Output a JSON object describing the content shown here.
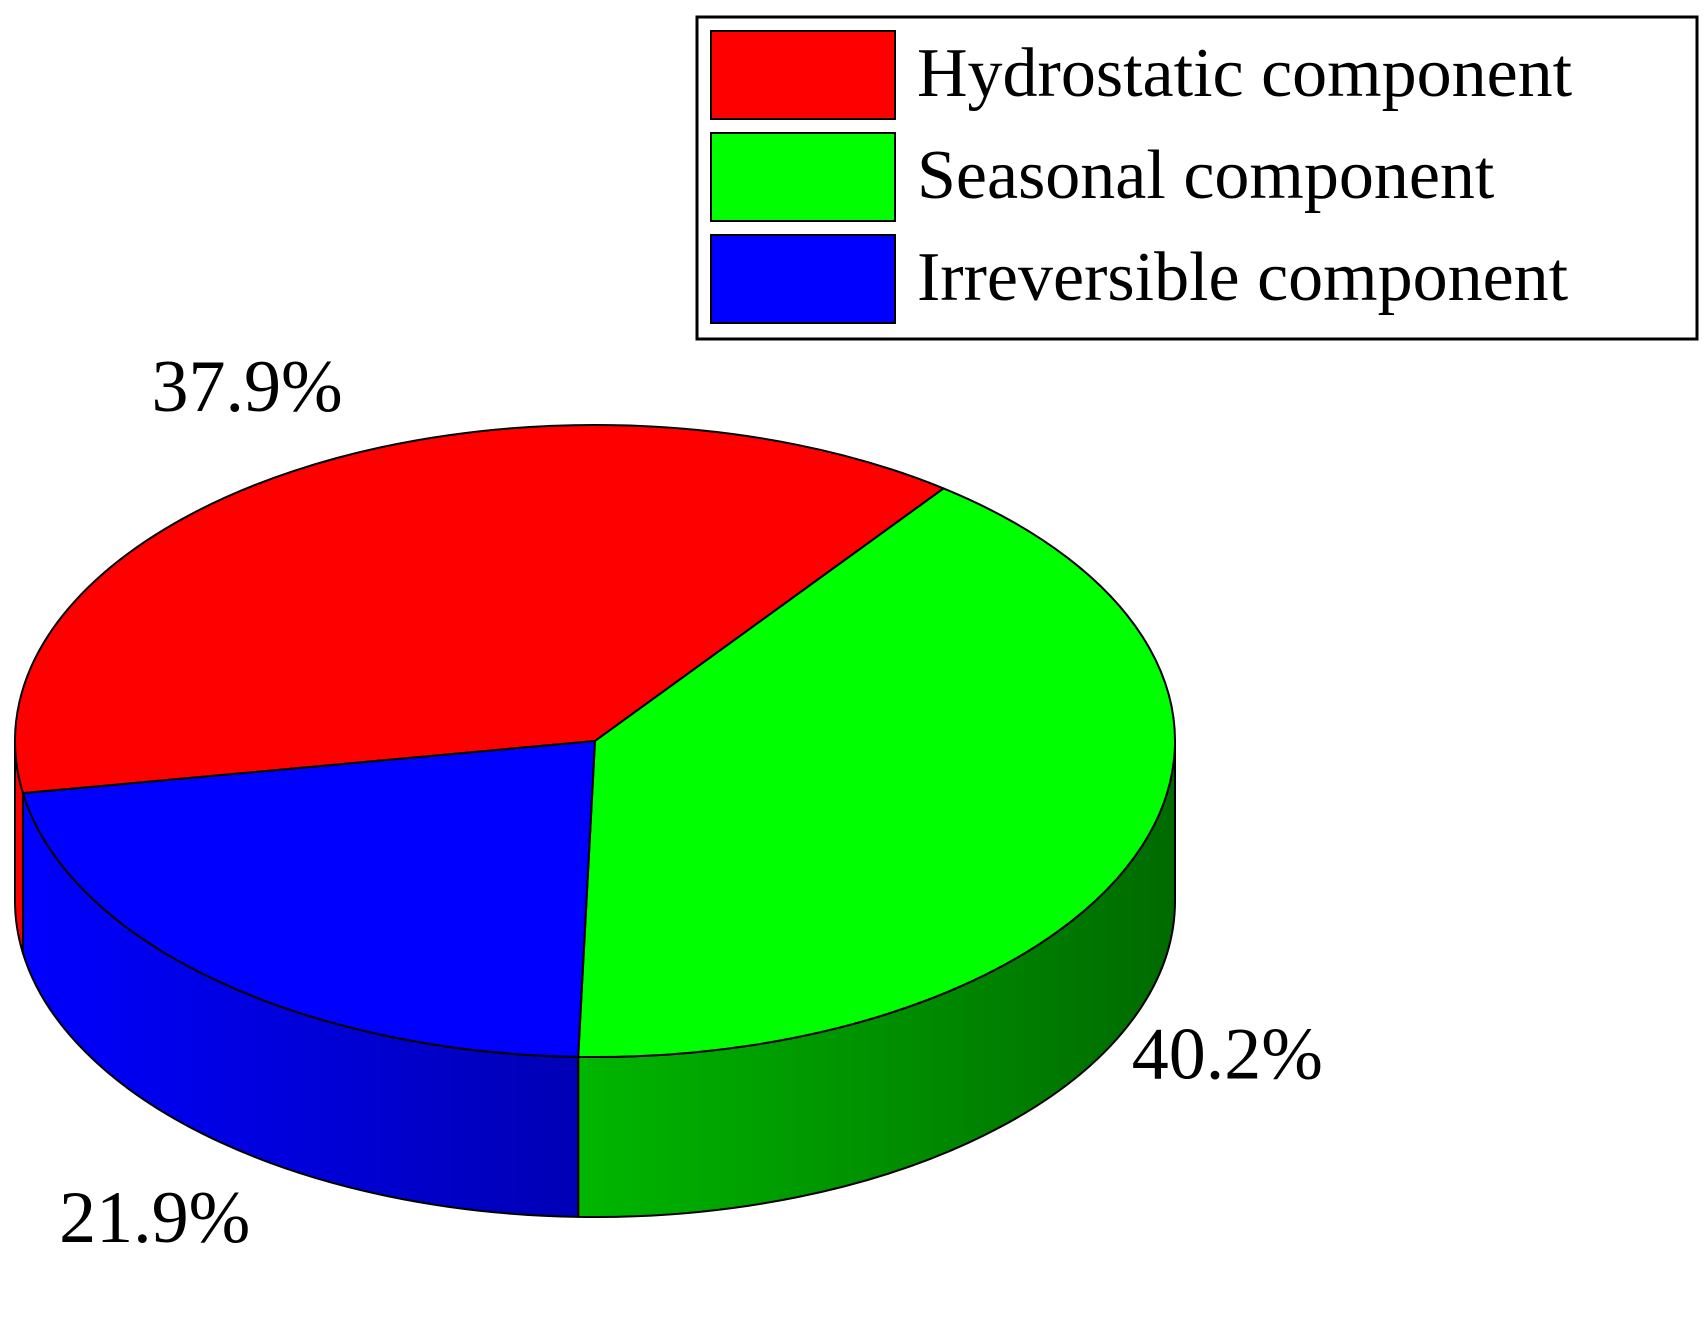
{
  "chart_data": {
    "type": "pie",
    "style": "3d",
    "title": "",
    "slices": [
      {
        "name": "Hydrostatic component",
        "value": 37.9,
        "label": "37.9%",
        "color": "#ff0000",
        "side_color_dark": "#6a0000"
      },
      {
        "name": "Seasonal component",
        "value": 40.2,
        "label": "40.2%",
        "color": "#00ff00",
        "side_color_dark": "#006a00"
      },
      {
        "name": "Irreversible component",
        "value": 21.9,
        "label": "21.9%",
        "color": "#0000ff",
        "side_color_dark": "#000066"
      }
    ],
    "legend_position": "top-right"
  }
}
